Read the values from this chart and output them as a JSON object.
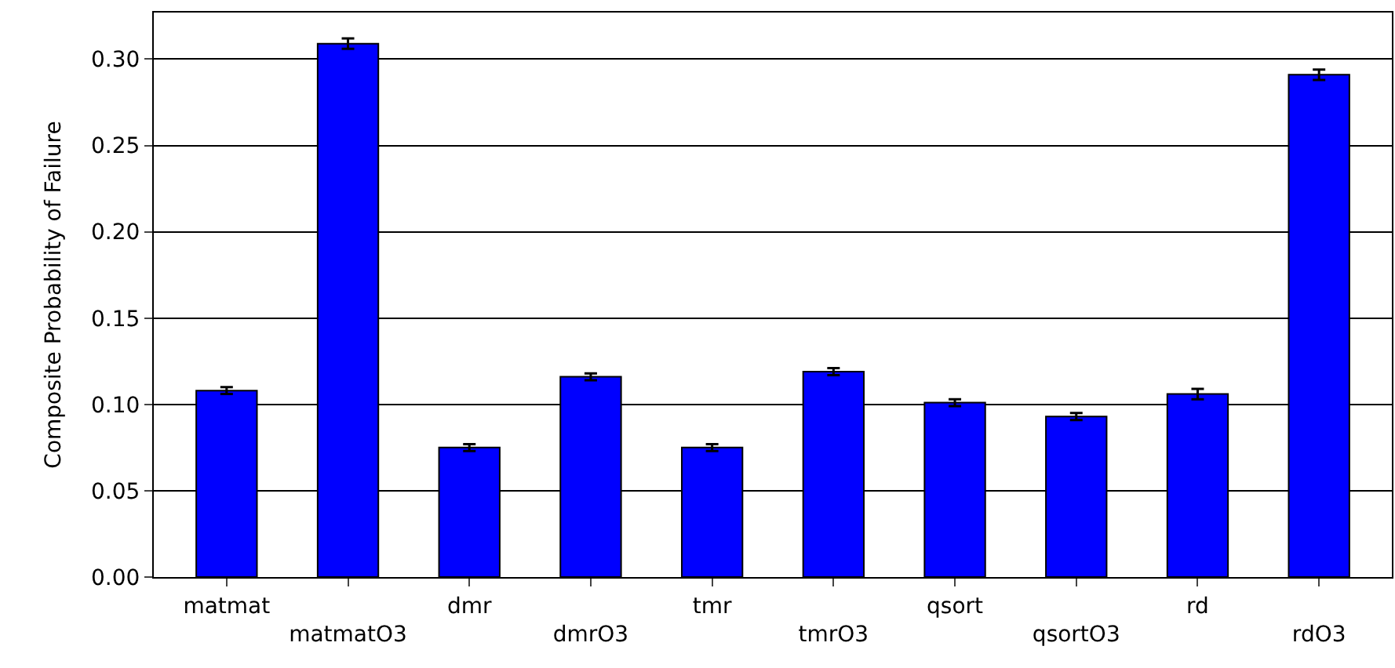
{
  "chart_data": {
    "type": "bar",
    "ylabel": "Composite Probability of Failure",
    "categories": [
      "matmat",
      "matmatO3",
      "dmr",
      "dmrO3",
      "tmr",
      "tmrO3",
      "qsort",
      "qsortO3",
      "rd",
      "rdO3"
    ],
    "values": [
      0.108,
      0.309,
      0.075,
      0.116,
      0.075,
      0.119,
      0.101,
      0.093,
      0.106,
      0.291
    ],
    "errors": [
      0.002,
      0.003,
      0.002,
      0.002,
      0.002,
      0.002,
      0.002,
      0.002,
      0.003,
      0.003
    ],
    "color": "#0000ff",
    "ylim": [
      0,
      0.327
    ],
    "yticks": [
      {
        "value": 0,
        "label": "0.00"
      },
      0.05,
      {
        "value": 0.1,
        "label": "0.10"
      },
      0.15,
      {
        "value": 0.2,
        "label": "0.20"
      },
      0.25,
      {
        "value": 0.3,
        "label": "0.30"
      }
    ],
    "grid": "y"
  }
}
